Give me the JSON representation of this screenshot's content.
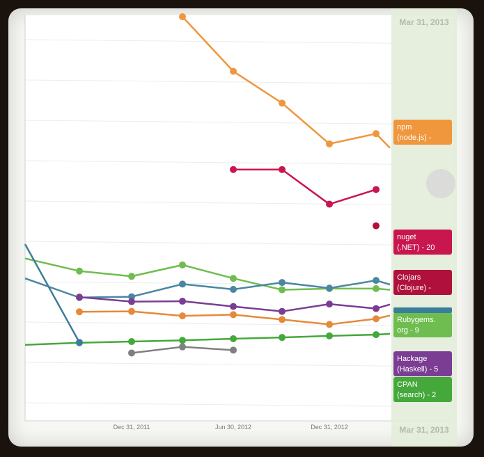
{
  "chart_data": {
    "type": "line",
    "x_ticks": [
      "Dec 31, 2011",
      "Jun 30, 2012",
      "Dec 31, 2012"
    ],
    "x": [
      "2011-07-01",
      "2011-10-01",
      "2012-01-01",
      "2012-04-01",
      "2012-07-01",
      "2012-10-01",
      "2013-01-01",
      "2013-03-01",
      "2013-03-31"
    ],
    "hover_date": "Mar 31, 2013",
    "grid": true,
    "legend_position": "right",
    "series": [
      {
        "name": "npm (node.js) -",
        "label_lines": [
          "npm",
          "(node.js) -"
        ],
        "color": "#f0963c",
        "values": [
          null,
          null,
          null,
          100,
          86.6,
          78.8,
          68.8,
          71.3,
          67.8
        ]
      },
      {
        "name": "nuget (.NET) - 20",
        "label_lines": [
          "nuget",
          "(.NET) - 20"
        ],
        "color": "#c8164e",
        "values": [
          null,
          null,
          null,
          null,
          62.5,
          62.5,
          54.0,
          57.6,
          null
        ]
      },
      {
        "name": "Clojars (Clojure) -",
        "label_lines": [
          "Clojars",
          "(Clojure) -"
        ],
        "color": "#b0103c",
        "values": [
          null,
          null,
          null,
          null,
          null,
          null,
          null,
          48.7,
          null
        ]
      },
      {
        "name": "Rubygems.org - 9",
        "label_lines": [
          "Rubygems.",
          "org - 9"
        ],
        "color": "#6fbd50",
        "values": [
          40.7,
          37.6,
          36.3,
          39.1,
          35.8,
          33.0,
          33.3,
          33.3,
          33.0
        ]
      },
      {
        "name": "",
        "color": "#4a87a2",
        "values": [
          35.8,
          31.1,
          31.3,
          34.4,
          33.1,
          34.8,
          33.4,
          35.3,
          34.3
        ]
      },
      {
        "name": "Hackage (Haskell) - 5",
        "label_lines": [
          "Hackage",
          "(Haskell) - 5"
        ],
        "color": "#7b3d93",
        "values": [
          null,
          31.2,
          30.1,
          30.2,
          28.9,
          27.7,
          29.5,
          28.4,
          29.4
        ]
      },
      {
        "name": "CPAN (search) - 2",
        "label_lines": [
          "CPAN",
          "(search) - 2"
        ],
        "color": "#45a83b",
        "values": [
          19.5,
          20.0,
          20.3,
          20.6,
          21.0,
          21.3,
          21.7,
          22.0,
          22.2
        ]
      },
      {
        "name": "",
        "color": "#e58a3a",
        "values": [
          null,
          27.6,
          27.7,
          26.6,
          26.9,
          25.7,
          24.5,
          25.9,
          26.7
        ]
      },
      {
        "name": "",
        "color": "#3f7c9b",
        "values": [
          44.2,
          20.1,
          null,
          null,
          null,
          null,
          null,
          null,
          null
        ]
      },
      {
        "name": "",
        "color": "#808080",
        "values": [
          null,
          null,
          17.5,
          19.0,
          18.2,
          null,
          null,
          null,
          null
        ]
      }
    ]
  },
  "hover_marker_color": "#d8d8d8"
}
